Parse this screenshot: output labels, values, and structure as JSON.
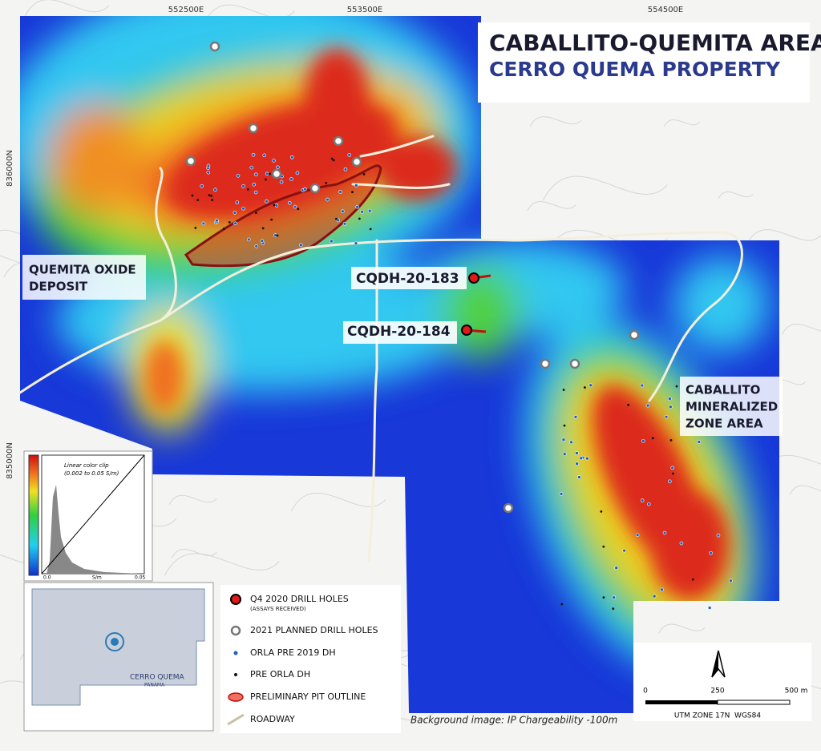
{
  "title": "CABALLITO-QUEMITA AREA",
  "subtitle": "CERRO QUEMA PROPERTY",
  "grid_labels": {
    "eastings": [
      "552500E",
      "553500E",
      "554500E"
    ],
    "northings": [
      "836000N",
      "835000N"
    ]
  },
  "areas": {
    "quemita": [
      "QUEMITA OXIDE",
      "DEPOSIT"
    ],
    "caballito": [
      "CABALLITO",
      "MINERALIZED",
      "ZONE AREA"
    ]
  },
  "drill_holes": [
    "CQDH-20-183",
    "CQDH-20-184"
  ],
  "color_bar": {
    "title": [
      "Linear color clip",
      "(0.002 to 0.05 S/m)"
    ],
    "axis": [
      "0.0",
      "S/m",
      "0.05"
    ]
  },
  "locator": {
    "name": "CERRO QUEMA",
    "country": "PANAMA"
  },
  "legend": [
    {
      "label": "Q4 2020 DRILL HOLES",
      "note": "(ASSAYS RECEIVED)"
    },
    {
      "label": "2021 PLANNED DRILL HOLES"
    },
    {
      "label": "ORLA PRE 2019 DH"
    },
    {
      "label": "PRE ORLA DH"
    },
    {
      "label": "PRELIMINARY PIT OUTLINE"
    },
    {
      "label": "ROADWAY"
    }
  ],
  "caption": "Background image: IP Chargeability -100m",
  "scale": {
    "ticks": [
      "0",
      "250",
      "500 m"
    ],
    "projection": "UTM ZONE 17N  WGS84"
  }
}
